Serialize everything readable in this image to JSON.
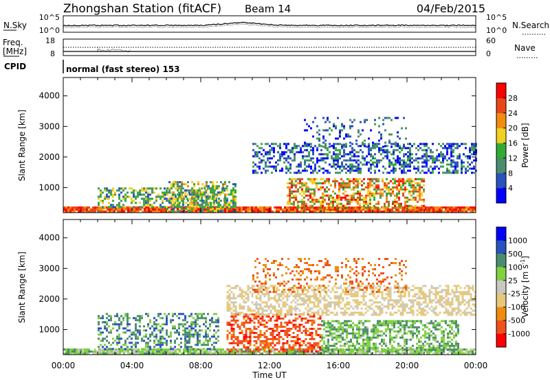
{
  "header": {
    "station": "Zhongshan Station (fitACF)",
    "beam": "Beam 14",
    "date": "04/Feb/2015"
  },
  "noise_panel": {
    "left_label": "N.Sky",
    "left_ticks": [
      "10^5",
      "10^0"
    ],
    "right_label": "N.Search",
    "right_ticks": [
      "10^5",
      "10^0"
    ]
  },
  "freq_panel": {
    "left_label_1": "Freq.",
    "left_label_2": "[MHz]",
    "left_ticks": [
      "18",
      "8"
    ],
    "right_label": "Nave",
    "right_ticks": [
      "60",
      "0"
    ]
  },
  "cpid_panel": {
    "label": "CPID",
    "text": "normal (fast stereo) 153"
  },
  "x_axis": {
    "label": "Time UT",
    "ticks": [
      "00:00",
      "04:00",
      "08:00",
      "12:00",
      "16:00",
      "20:00",
      "00:00"
    ]
  },
  "colors": {
    "power_scale": [
      "#0000ff",
      "#2a52be",
      "#4a8c6e",
      "#33aa33",
      "#f0d020",
      "#f08c10",
      "#e84818",
      "#ff0000"
    ],
    "velocity_scale": [
      "#ff0000",
      "#f0501a",
      "#f08c10",
      "#e6c87a",
      "#c8c8be",
      "#80d040",
      "#4a8c6e",
      "#2a52be",
      "#0000ff"
    ]
  },
  "chart_data": [
    {
      "type": "heatmap",
      "title": "Power",
      "ylabel": "Slant Range [km]",
      "ylim": [
        180,
        4600
      ],
      "y_ticks": [
        1000,
        2000,
        3000,
        4000
      ],
      "xlim": [
        0,
        24
      ],
      "colorbar": {
        "label": "Power [dB]",
        "range": [
          0,
          32
        ],
        "ticks": [
          "4",
          "8",
          "12",
          "16",
          "20",
          "24",
          "28"
        ]
      },
      "regions": [
        {
          "x0": 0,
          "x1": 24,
          "y0": 180,
          "y1": 330,
          "level": [
            0.6,
            1.0
          ],
          "density": 0.95
        },
        {
          "x0": 2,
          "x1": 9.5,
          "y0": 330,
          "y1": 950,
          "level": [
            0.2,
            0.6
          ],
          "density": 0.45
        },
        {
          "x0": 6,
          "x1": 10,
          "y0": 200,
          "y1": 1200,
          "level": [
            0.2,
            0.65
          ],
          "density": 0.55
        },
        {
          "x0": 13,
          "x1": 21,
          "y0": 300,
          "y1": 1300,
          "level": [
            0.35,
            0.95
          ],
          "density": 0.55
        },
        {
          "x0": 11,
          "x1": 24,
          "y0": 1450,
          "y1": 2400,
          "level": [
            0.0,
            0.45
          ],
          "density": 0.45
        },
        {
          "x0": 14,
          "x1": 20,
          "y0": 2300,
          "y1": 3300,
          "level": [
            0.0,
            0.4
          ],
          "density": 0.2
        }
      ]
    },
    {
      "type": "heatmap",
      "title": "Velocity",
      "ylabel": "Slant Range [km]",
      "ylim": [
        180,
        4600
      ],
      "y_ticks": [
        1000,
        2000,
        3000,
        4000
      ],
      "xlim": [
        0,
        24
      ],
      "colorbar": {
        "label": "Velocity [m s^-1]",
        "range": [
          -1000,
          1000
        ],
        "ticks": [
          "1000",
          "500",
          "100",
          "25",
          "-25",
          "-100",
          "-500",
          "-1000"
        ]
      },
      "regions": [
        {
          "x0": 0,
          "x1": 24,
          "y0": 180,
          "y1": 330,
          "level": [
            0.5,
            0.7
          ],
          "density": 0.9
        },
        {
          "x0": 2,
          "x1": 9,
          "y0": 330,
          "y1": 1500,
          "level": [
            0.6,
            0.85
          ],
          "density": 0.4
        },
        {
          "x0": 9.5,
          "x1": 15,
          "y0": 250,
          "y1": 1500,
          "level": [
            0.08,
            0.25
          ],
          "density": 0.5
        },
        {
          "x0": 15,
          "x1": 23,
          "y0": 300,
          "y1": 1300,
          "level": [
            0.55,
            0.75
          ],
          "density": 0.55
        },
        {
          "x0": 9.5,
          "x1": 24,
          "y0": 1450,
          "y1": 2400,
          "level": [
            0.38,
            0.48
          ],
          "density": 0.5
        },
        {
          "x0": 11,
          "x1": 20,
          "y0": 2200,
          "y1": 3300,
          "level": [
            0.15,
            0.3
          ],
          "density": 0.2
        }
      ]
    }
  ]
}
